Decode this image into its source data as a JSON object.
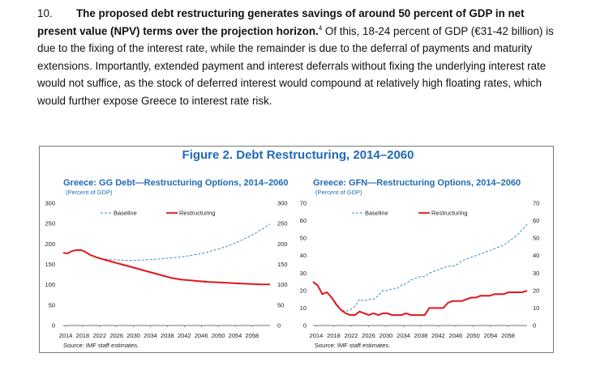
{
  "paragraph": {
    "number": "10.",
    "bold_text": "The proposed debt restructuring generates savings of around 50 percent of GDP in net present value (NPV) terms over the projection horizon.",
    "footnote": "4",
    "body_text": " Of this, 18-24 percent of GDP (€31-42 billion) is due to the fixing of the interest rate, while the remainder is due to the deferral of payments and maturity extensions. Importantly, extended payment and interest deferrals without fixing the underlying interest rate would not suffice, as the stock of deferred interest would compound at relatively high floating rates, which would further expose Greece to interest rate risk."
  },
  "figure": {
    "title": "Figure 2. Debt Restructuring, 2014–2060"
  },
  "colors": {
    "baseline": "#3a8fc6",
    "restructuring": "#e0161b",
    "title_blue": "#1f6ab5"
  },
  "chart_data": [
    {
      "type": "line",
      "title": "Greece: GG Debt—Restructuring Options, 2014–2060",
      "subtitle": "(Percent of GDP)",
      "source": "Source: IMF staff estimates.",
      "x_tick_labels": [
        "2014",
        "2018",
        "2022",
        "2026",
        "2030",
        "2034",
        "2038",
        "2042",
        "2046",
        "2050",
        "2054",
        "2058"
      ],
      "y_ticks": [
        0,
        50,
        100,
        150,
        200,
        250,
        300
      ],
      "ylim": [
        0,
        300
      ],
      "xlim": [
        2014,
        2060
      ],
      "legend": [
        "Baseline",
        "Restructuring"
      ],
      "series": [
        {
          "name": "Baseline",
          "style": "dashed",
          "x": [
            2014,
            2015,
            2016,
            2017,
            2018,
            2019,
            2020,
            2022,
            2024,
            2026,
            2028,
            2030,
            2032,
            2034,
            2036,
            2038,
            2040,
            2042,
            2044,
            2046,
            2048,
            2050,
            2052,
            2054,
            2056,
            2058,
            2060
          ],
          "values": [
            178,
            177,
            183,
            185,
            185,
            180,
            173,
            165,
            162,
            161,
            160,
            160,
            161,
            162,
            164,
            166,
            168,
            171,
            175,
            180,
            186,
            193,
            201,
            211,
            222,
            235,
            249
          ]
        },
        {
          "name": "Restructuring",
          "style": "solid",
          "x": [
            2014,
            2015,
            2016,
            2017,
            2018,
            2019,
            2020,
            2022,
            2024,
            2026,
            2028,
            2030,
            2032,
            2034,
            2036,
            2038,
            2040,
            2042,
            2044,
            2046,
            2048,
            2050,
            2052,
            2054,
            2056,
            2058,
            2060
          ],
          "values": [
            178,
            177,
            183,
            185,
            185,
            180,
            173,
            165,
            159,
            153,
            147,
            141,
            135,
            129,
            123,
            117,
            113,
            111,
            109,
            107,
            106,
            105,
            104,
            103,
            102,
            101,
            101
          ]
        }
      ]
    },
    {
      "type": "line",
      "title": "Greece: GFN—Restructuring Options, 2014–2060",
      "subtitle": "(Percent of GDP)",
      "source": "Source: IMF staff estimates.",
      "x_tick_labels": [
        "2014",
        "2018",
        "2022",
        "2026",
        "2030",
        "2034",
        "2038",
        "2042",
        "2046",
        "2050",
        "2054",
        "2058"
      ],
      "y_ticks": [
        0,
        10,
        20,
        30,
        40,
        50,
        60,
        70
      ],
      "ylim": [
        0,
        70
      ],
      "xlim": [
        2014,
        2060
      ],
      "legend": [
        "Baseline",
        "Restructuring"
      ],
      "series": [
        {
          "name": "Baseline",
          "style": "dashed",
          "x": [
            2014,
            2015,
            2016,
            2017,
            2018,
            2019,
            2020,
            2021,
            2022,
            2023,
            2024,
            2025,
            2026,
            2027,
            2028,
            2029,
            2030,
            2031,
            2032,
            2033,
            2034,
            2035,
            2036,
            2037,
            2038,
            2039,
            2040,
            2041,
            2042,
            2043,
            2044,
            2045,
            2046,
            2047,
            2048,
            2049,
            2050,
            2051,
            2052,
            2053,
            2054,
            2055,
            2056,
            2057,
            2058,
            2059,
            2060
          ],
          "values": [
            25,
            23,
            18,
            19,
            16,
            13,
            9,
            8,
            9,
            11,
            15,
            14,
            15,
            15,
            17,
            20,
            20,
            21,
            21,
            23,
            24,
            26,
            27,
            28,
            28,
            30,
            31,
            32,
            33,
            34,
            34,
            35,
            37,
            38,
            39,
            40,
            41,
            42,
            43,
            44,
            45,
            46,
            48,
            50,
            52,
            55,
            58
          ]
        },
        {
          "name": "Restructuring",
          "style": "solid",
          "x": [
            2014,
            2015,
            2016,
            2017,
            2018,
            2019,
            2020,
            2021,
            2022,
            2023,
            2024,
            2025,
            2026,
            2027,
            2028,
            2029,
            2030,
            2031,
            2032,
            2033,
            2034,
            2035,
            2036,
            2037,
            2038,
            2039,
            2040,
            2041,
            2042,
            2043,
            2044,
            2045,
            2046,
            2047,
            2048,
            2049,
            2050,
            2051,
            2052,
            2053,
            2054,
            2055,
            2056,
            2057,
            2058,
            2059,
            2060
          ],
          "values": [
            25,
            23,
            18,
            19,
            16,
            12,
            9,
            7,
            6,
            6,
            8,
            7,
            6,
            7,
            6,
            7,
            7,
            6,
            6,
            6,
            7,
            6,
            6,
            6,
            6,
            10,
            10,
            10,
            10,
            13,
            14,
            14,
            14,
            15,
            16,
            16,
            17,
            17,
            17,
            18,
            18,
            18,
            19,
            19,
            19,
            19,
            20
          ]
        }
      ]
    }
  ]
}
